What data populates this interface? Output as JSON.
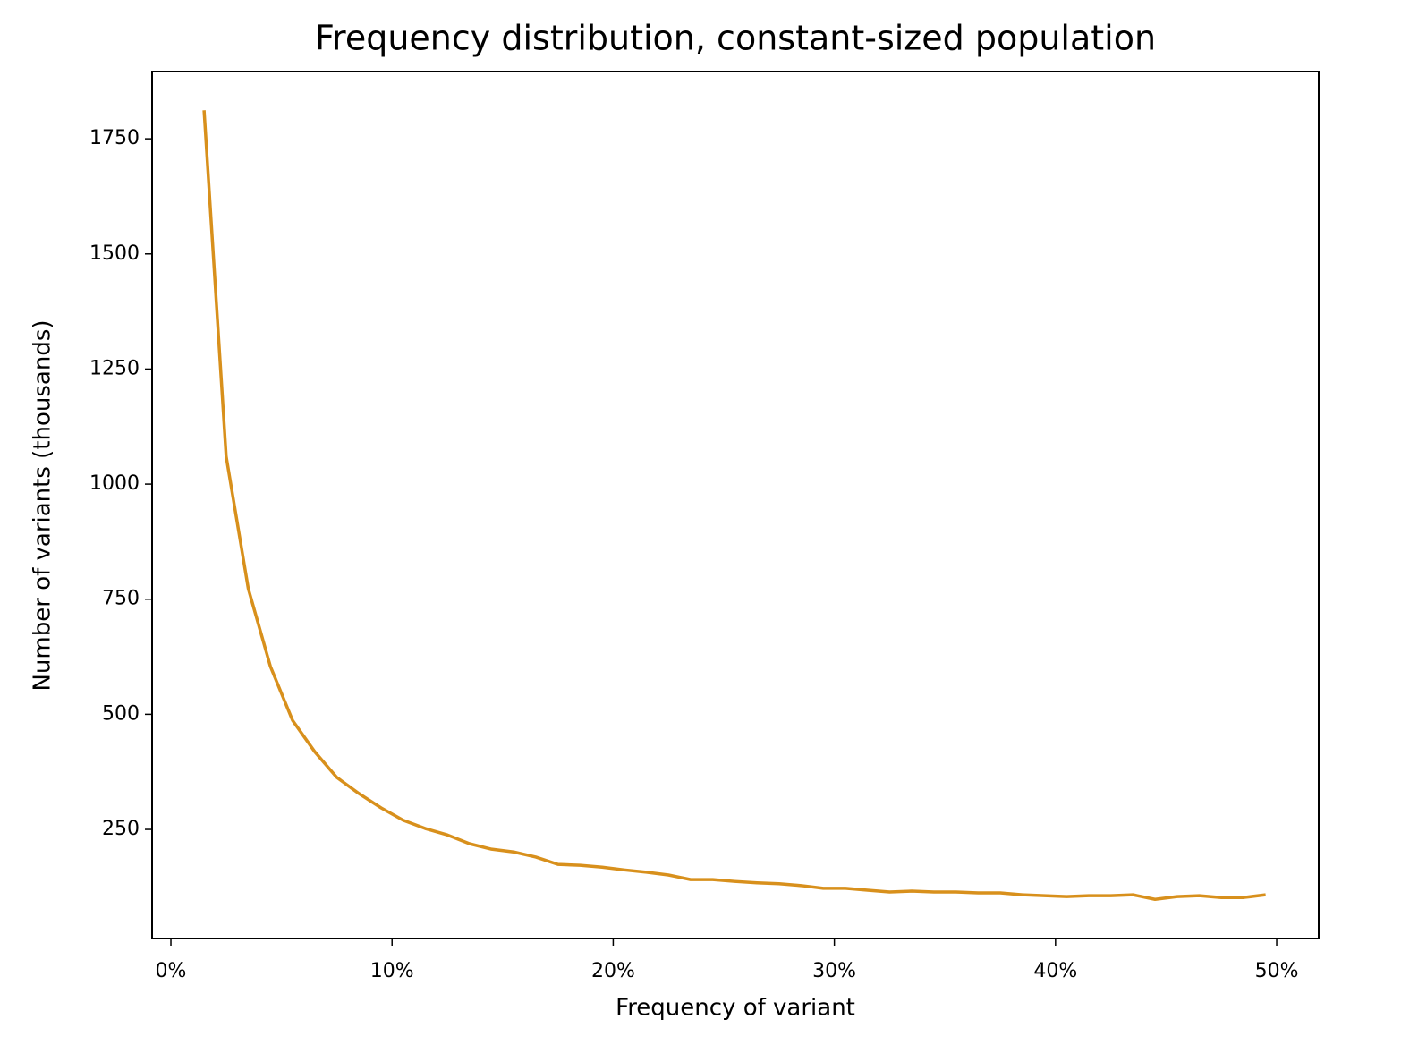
{
  "chart_data": {
    "type": "line",
    "title": "Frequency distribution, constant-sized population",
    "x_label": "Frequency of variant",
    "y_label": "Number of variants (thousands)",
    "x": [
      1.5,
      2.5,
      3.5,
      4.5,
      5.5,
      6.5,
      7.5,
      8.5,
      9.5,
      10.5,
      11.5,
      12.5,
      13.5,
      14.5,
      15.5,
      16.5,
      17.5,
      18.5,
      19.5,
      20.5,
      21.5,
      22.5,
      23.5,
      24.5,
      25.5,
      26.5,
      27.5,
      28.5,
      29.5,
      30.5,
      31.5,
      32.5,
      33.5,
      34.5,
      35.5,
      36.5,
      37.5,
      38.5,
      39.5,
      40.5,
      41.5,
      42.5,
      43.5,
      44.5,
      45.5,
      46.5,
      47.5,
      48.5,
      49.5
    ],
    "series": [
      {
        "color": "#d8901c",
        "values": [
          1812,
          1060,
          773,
          604,
          487,
          419,
          363,
          328,
          297,
          270,
          252,
          238,
          219,
          207,
          201,
          190,
          174,
          172,
          168,
          162,
          157,
          151,
          141,
          141,
          137,
          134,
          132,
          128,
          122,
          122,
          118,
          114,
          116,
          114,
          114,
          112,
          112,
          108,
          106,
          104,
          106,
          106,
          108,
          98,
          104,
          106,
          102,
          102,
          108
        ]
      }
    ],
    "xlim": [
      -0.85,
      51.9
    ],
    "ylim": [
      13,
      1896
    ],
    "xticks": [
      {
        "value": 0,
        "label": "0%"
      },
      {
        "value": 10,
        "label": "10%"
      },
      {
        "value": 20,
        "label": "20%"
      },
      {
        "value": 30,
        "label": "30%"
      },
      {
        "value": 40,
        "label": "40%"
      },
      {
        "value": 50,
        "label": "50%"
      }
    ],
    "yticks": [
      250,
      500,
      750,
      1000,
      1250,
      1500,
      1750
    ],
    "grid": false
  }
}
